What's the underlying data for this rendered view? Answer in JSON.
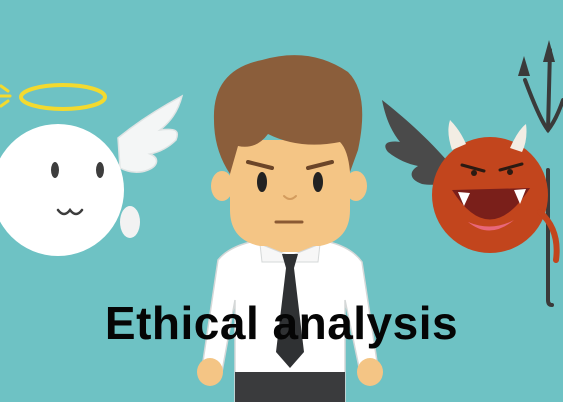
{
  "caption": "Ethical analysis",
  "colors": {
    "background": "#6ec2c4",
    "angel": "#ffffff",
    "halo": "#f3da2e",
    "devil": "#c2451d",
    "hair": "#8b5e3b",
    "skin": "#f4c585",
    "tie": "#2f3133",
    "devil_wing": "#4a4a4a"
  },
  "icons": [
    "angel-figure",
    "businessman-figure",
    "devil-figure"
  ]
}
